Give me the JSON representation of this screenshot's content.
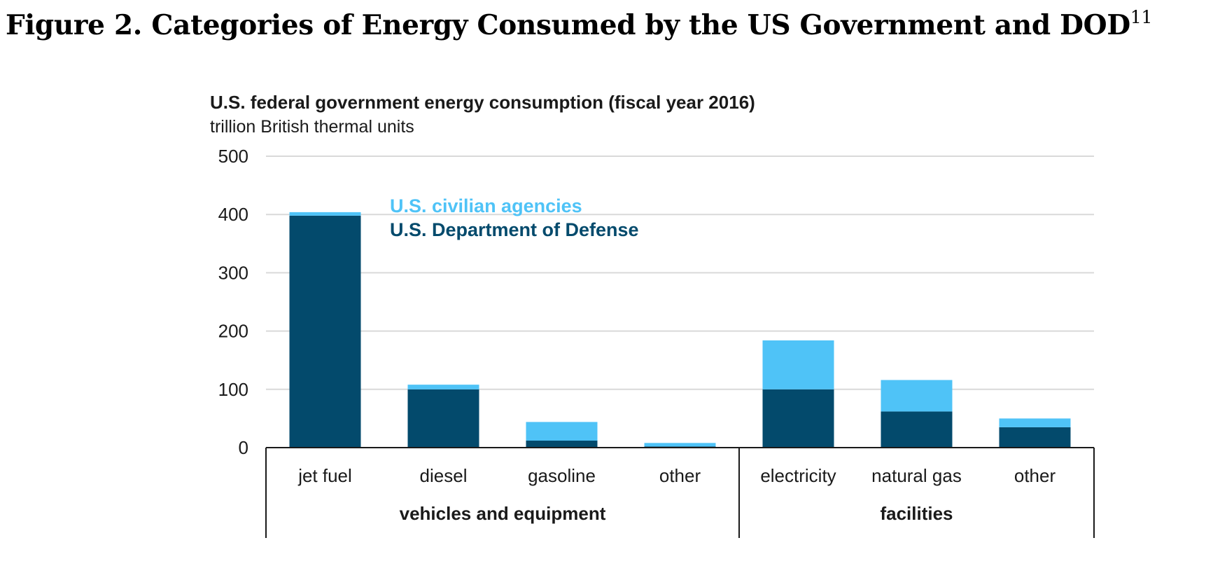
{
  "figure": {
    "caption": "Figure 2. Categories of Energy Consumed by the US Government and DOD",
    "footnote": "11"
  },
  "colors": {
    "civilian": "#4fc3f7",
    "defense": "#034a6c",
    "grid": "#d9d9d9",
    "axis": "#1a1a1a"
  },
  "chart_data": {
    "type": "bar",
    "stacked": true,
    "title": "U.S. federal government energy consumption (fiscal year 2016)",
    "subtitle": "trillion British thermal units",
    "xlabel": "",
    "ylabel": "trillion British thermal units",
    "ylim": [
      0,
      500
    ],
    "yticks": [
      0,
      100,
      200,
      300,
      400,
      500
    ],
    "grid": true,
    "legend_position": "top-left",
    "categories": [
      "jet fuel",
      "diesel",
      "gasoline",
      "other",
      "electricity",
      "natural gas",
      "other"
    ],
    "groups": [
      {
        "label": "vehicles and equipment",
        "start": 0,
        "end": 3
      },
      {
        "label": "facilities",
        "start": 4,
        "end": 6
      }
    ],
    "series": [
      {
        "name": "U.S. Department of Defense",
        "values": [
          398,
          100,
          12,
          2,
          100,
          62,
          35
        ]
      },
      {
        "name": "U.S. civilian agencies",
        "values": [
          6,
          8,
          32,
          6,
          84,
          54,
          15
        ]
      }
    ],
    "legend": [
      "U.S. civilian agencies",
      "U.S. Department of Defense"
    ]
  }
}
